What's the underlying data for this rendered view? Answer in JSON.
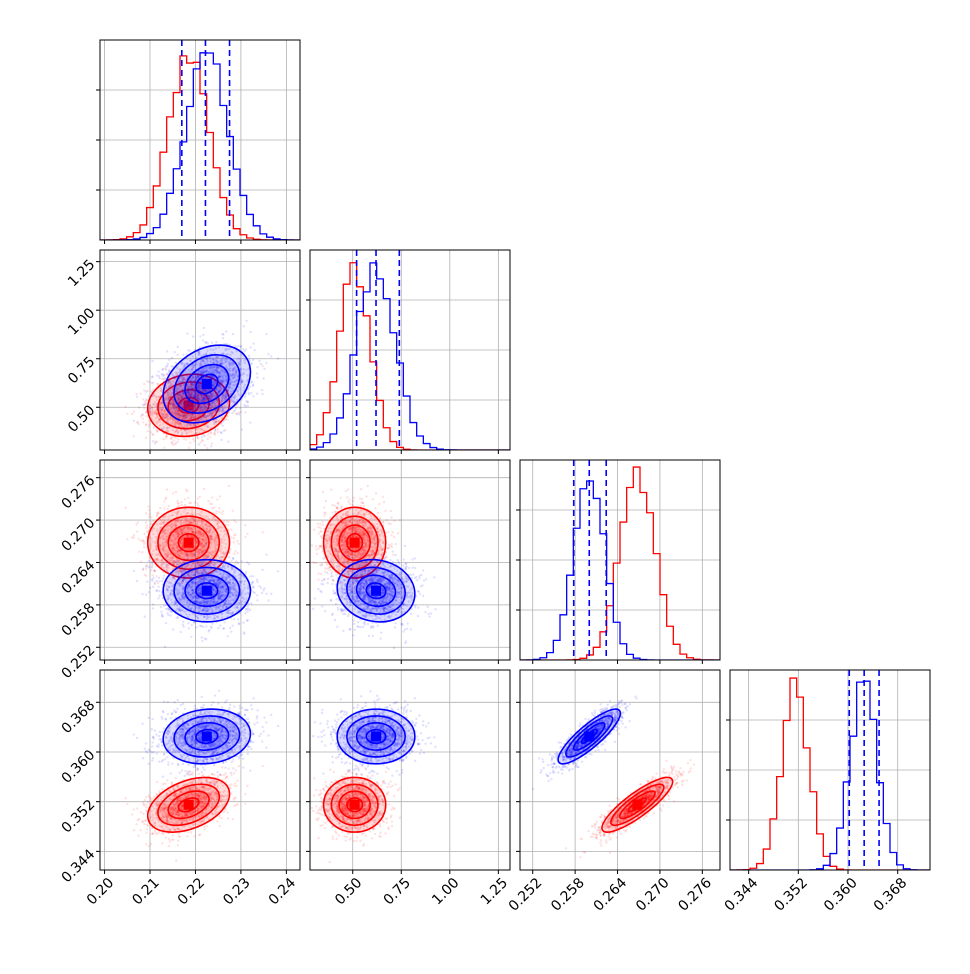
{
  "colors": {
    "red": "#ff0000",
    "blue": "#0000ff",
    "pale_red": "#ff8c8c",
    "pale_blue": "#8c8cff",
    "grid": "#b0b0b0"
  },
  "chart_data": {
    "type": "corner",
    "parameters": [
      {
        "ticks": [
          0.2,
          0.21,
          0.22,
          0.23,
          0.24
        ],
        "tick_labels": [
          "0.20",
          "0.21",
          "0.22",
          "0.23",
          "0.24"
        ],
        "range": [
          0.199,
          0.243
        ]
      },
      {
        "ticks": [
          0.5,
          0.75,
          1.0,
          1.25
        ],
        "tick_labels": [
          "0.50",
          "0.75",
          "1.00",
          "1.25"
        ],
        "range": [
          0.28,
          1.31
        ]
      },
      {
        "ticks": [
          0.252,
          0.258,
          0.264,
          0.27,
          0.276
        ],
        "tick_labels": [
          "0.252",
          "0.258",
          "0.264",
          "0.270",
          "0.276"
        ],
        "range": [
          0.2502,
          0.2785
        ]
      },
      {
        "ticks": [
          0.344,
          0.352,
          0.36,
          0.368
        ],
        "tick_labels": [
          "0.344",
          "0.352",
          "0.360",
          "0.368"
        ],
        "range": [
          0.341,
          0.3732
        ]
      }
    ],
    "series": [
      {
        "color": "red",
        "mean": [
          0.2185,
          0.51,
          0.2668,
          0.3515
        ],
        "std": [
          0.0045,
          0.08,
          0.0025,
          0.0022
        ],
        "corr": [
          [
            1,
            0.1,
            0,
            0.4
          ],
          [
            0.1,
            1,
            0,
            0
          ],
          [
            0,
            0,
            1,
            0.85
          ],
          [
            0.4,
            0,
            0.85,
            1
          ]
        ]
      },
      {
        "color": "blue",
        "mean": [
          0.2225,
          0.62,
          0.26,
          0.3625
        ],
        "std": [
          0.0048,
          0.1,
          0.0022,
          0.0022
        ],
        "corr": [
          [
            1,
            0.3,
            0,
            0.1
          ],
          [
            0.3,
            1,
            -0.1,
            0
          ],
          [
            0,
            -0.1,
            1,
            0.85
          ],
          [
            0.1,
            0,
            0.85,
            1
          ]
        ]
      }
    ],
    "quantile_lines": [
      [
        0.217,
        0.2222,
        0.2275
      ],
      [
        0.52,
        0.62,
        0.74
      ],
      [
        0.2578,
        0.26,
        0.2624
      ],
      [
        0.3602,
        0.3626,
        0.365
      ]
    ],
    "quantile_line_color": "blue",
    "grid": true,
    "contour_levels_sigma": [
      0.5,
      1.0,
      1.5,
      2.0
    ]
  }
}
